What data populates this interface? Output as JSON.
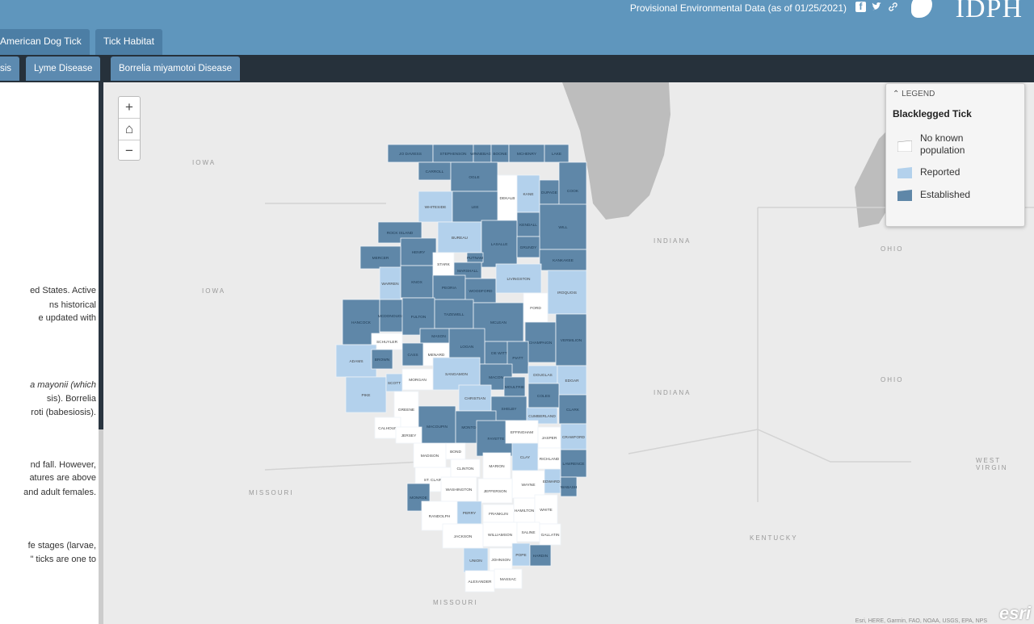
{
  "header": {
    "provisional": "Provisional Environmental Data (as of 01/25/2021)",
    "logo_text": "IDPH"
  },
  "tabs_top": [
    "American Dog Tick",
    "Tick Habitat"
  ],
  "tabs_sub": [
    "sis",
    "Lyme Disease",
    "Borrelia miyamotoi Disease"
  ],
  "side_text": [
    "ed States. Active",
    "ns historical",
    "e updated with",
    "a mayonii (which",
    "sis). Borrelia",
    "roti (babesiosis).",
    "nd fall. However,",
    "atures are above",
    " and adult females.",
    "fe stages (larvae,",
    "\" ticks are one to"
  ],
  "map": {
    "state_labels": [
      "IOWA",
      "IOWA",
      "INDIANA",
      "INDIANA",
      "MISSOURI",
      "MISSOURI",
      "OHIO",
      "OHIO",
      "KENTUCKY",
      "WEST VIRGIN"
    ],
    "zoom": {
      "plus": "+",
      "home": "⌂",
      "minus": "−"
    },
    "attribution": "Esri, HERE, Garmin, FAO, NOAA, USGS, EPA, NPS",
    "esri": "esri"
  },
  "legend": {
    "header": "LEGEND",
    "title": "Blacklegged Tick",
    "items": [
      {
        "label_lines": [
          "No known",
          "population"
        ],
        "color": "#ffffff"
      },
      {
        "label_lines": [
          "Reported"
        ],
        "color": "#b3d1ec"
      },
      {
        "label_lines": [
          "Established"
        ],
        "color": "#5f87a8"
      }
    ]
  },
  "colors": {
    "established": "#5f87a8",
    "reported": "#b3d1ec",
    "none": "#ffffff"
  },
  "counties": [
    {
      "name": "JO DAVIESS",
      "status": "established"
    },
    {
      "name": "STEPHENSON",
      "status": "established"
    },
    {
      "name": "WINNEBAGO",
      "status": "established"
    },
    {
      "name": "BOONE",
      "status": "established"
    },
    {
      "name": "MCHENRY",
      "status": "established"
    },
    {
      "name": "LAKE",
      "status": "established"
    },
    {
      "name": "CARROLL",
      "status": "established"
    },
    {
      "name": "OGLE",
      "status": "established"
    },
    {
      "name": "DEKALB",
      "status": "none"
    },
    {
      "name": "KANE",
      "status": "reported"
    },
    {
      "name": "DUPAGE",
      "status": "established"
    },
    {
      "name": "COOK",
      "status": "established"
    },
    {
      "name": "WHITESIDE",
      "status": "reported"
    },
    {
      "name": "LEE",
      "status": "established"
    },
    {
      "name": "KENDALL",
      "status": "established"
    },
    {
      "name": "WILL",
      "status": "established"
    },
    {
      "name": "ROCK ISLAND",
      "status": "established"
    },
    {
      "name": "HENRY",
      "status": "established"
    },
    {
      "name": "BUREAU",
      "status": "reported"
    },
    {
      "name": "LASALLE",
      "status": "established"
    },
    {
      "name": "GRUNDY",
      "status": "established"
    },
    {
      "name": "KANKAKEE",
      "status": "established"
    },
    {
      "name": "MERCER",
      "status": "established"
    },
    {
      "name": "PUTNAM",
      "status": "established"
    },
    {
      "name": "STARK",
      "status": "none"
    },
    {
      "name": "MARSHALL",
      "status": "established"
    },
    {
      "name": "KNOX",
      "status": "established"
    },
    {
      "name": "WARREN",
      "status": "reported"
    },
    {
      "name": "PEORIA",
      "status": "established"
    },
    {
      "name": "WOODFORD",
      "status": "established"
    },
    {
      "name": "LIVINGSTON",
      "status": "reported"
    },
    {
      "name": "IROQUOIS",
      "status": "reported"
    },
    {
      "name": "FORD",
      "status": "none"
    },
    {
      "name": "HANCOCK",
      "status": "established"
    },
    {
      "name": "MCDONOUGH",
      "status": "established"
    },
    {
      "name": "FULTON",
      "status": "established"
    },
    {
      "name": "TAZEWELL",
      "status": "established"
    },
    {
      "name": "MCLEAN",
      "status": "established"
    },
    {
      "name": "MASON",
      "status": "established"
    },
    {
      "name": "DE WITT",
      "status": "established"
    },
    {
      "name": "CHAMPAIGN",
      "status": "established"
    },
    {
      "name": "VERMILION",
      "status": "established"
    },
    {
      "name": "SCHUYLER",
      "status": "none"
    },
    {
      "name": "ADAMS",
      "status": "reported"
    },
    {
      "name": "BROWN",
      "status": "established"
    },
    {
      "name": "CASS",
      "status": "established"
    },
    {
      "name": "MENARD",
      "status": "none"
    },
    {
      "name": "LOGAN",
      "status": "established"
    },
    {
      "name": "PIATT",
      "status": "established"
    },
    {
      "name": "MACON",
      "status": "established"
    },
    {
      "name": "DOUGLAS",
      "status": "reported"
    },
    {
      "name": "EDGAR",
      "status": "reported"
    },
    {
      "name": "PIKE",
      "status": "reported"
    },
    {
      "name": "MORGAN",
      "status": "none"
    },
    {
      "name": "SCOTT",
      "status": "reported"
    },
    {
      "name": "SANGAMON",
      "status": "reported"
    },
    {
      "name": "CHRISTIAN",
      "status": "reported"
    },
    {
      "name": "MOULTRIE",
      "status": "established"
    },
    {
      "name": "COLES",
      "status": "established"
    },
    {
      "name": "SHELBY",
      "status": "established"
    },
    {
      "name": "CLARK",
      "status": "established"
    },
    {
      "name": "GREENE",
      "status": "none"
    },
    {
      "name": "MACOUPIN",
      "status": "established"
    },
    {
      "name": "MONTGOMERY",
      "status": "established"
    },
    {
      "name": "FAYETTE",
      "status": "established"
    },
    {
      "name": "CUMBERLAND",
      "status": "reported"
    },
    {
      "name": "EFFINGHAM",
      "status": "none"
    },
    {
      "name": "JASPER",
      "status": "none"
    },
    {
      "name": "CRAWFORD",
      "status": "reported"
    },
    {
      "name": "CALHOUN",
      "status": "none"
    },
    {
      "name": "JERSEY",
      "status": "none"
    },
    {
      "name": "MADISON",
      "status": "none"
    },
    {
      "name": "BOND",
      "status": "none"
    },
    {
      "name": "CLAY",
      "status": "reported"
    },
    {
      "name": "RICHLAND",
      "status": "none"
    },
    {
      "name": "LAWRENCE",
      "status": "established"
    },
    {
      "name": "ST. CLAIR",
      "status": "none"
    },
    {
      "name": "CLINTON",
      "status": "none"
    },
    {
      "name": "MARION",
      "status": "none"
    },
    {
      "name": "WAYNE",
      "status": "none"
    },
    {
      "name": "EDWARDS",
      "status": "reported"
    },
    {
      "name": "WABASH",
      "status": "established"
    },
    {
      "name": "MONROE",
      "status": "established"
    },
    {
      "name": "WASHINGTON",
      "status": "none"
    },
    {
      "name": "JEFFERSON",
      "status": "none"
    },
    {
      "name": "RANDOLPH",
      "status": "none"
    },
    {
      "name": "PERRY",
      "status": "reported"
    },
    {
      "name": "FRANKLIN",
      "status": "none"
    },
    {
      "name": "HAMILTON",
      "status": "none"
    },
    {
      "name": "WHITE",
      "status": "none"
    },
    {
      "name": "JACKSON",
      "status": "none"
    },
    {
      "name": "WILLIAMSON",
      "status": "none"
    },
    {
      "name": "SALINE",
      "status": "none"
    },
    {
      "name": "GALLATIN",
      "status": "none"
    },
    {
      "name": "UNION",
      "status": "reported"
    },
    {
      "name": "JOHNSON",
      "status": "none"
    },
    {
      "name": "POPE",
      "status": "reported"
    },
    {
      "name": "HARDIN",
      "status": "established"
    },
    {
      "name": "ALEXANDER",
      "status": "none"
    },
    {
      "name": "MASSAC",
      "status": "none"
    }
  ]
}
